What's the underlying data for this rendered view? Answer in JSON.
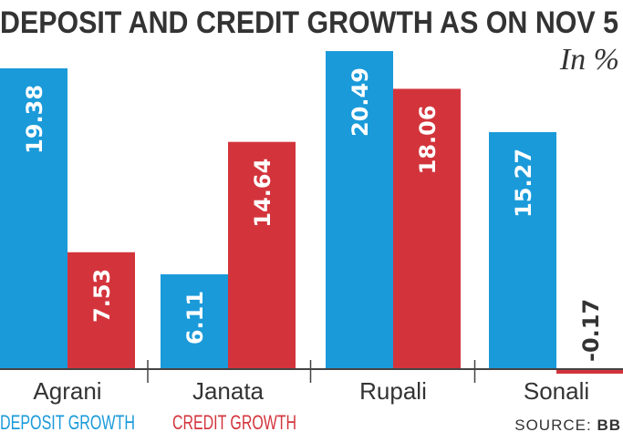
{
  "chart_data": {
    "type": "bar",
    "title": "DEPOSIT AND CREDIT GROWTH AS ON NOV 5",
    "unit_label": "In %",
    "categories": [
      "Agrani",
      "Janata",
      "Rupali",
      "Sonali"
    ],
    "series": [
      {
        "name": "DEPOSIT GROWTH",
        "color": "#1a9ad9",
        "values": [
          19.38,
          6.11,
          20.49,
          15.27
        ],
        "labels": [
          "19.38",
          "6.11",
          "20.49",
          "15.27"
        ]
      },
      {
        "name": "CREDIT GROWTH",
        "color": "#d3343c",
        "values": [
          7.53,
          14.64,
          18.06,
          -0.17
        ],
        "labels": [
          "7.53",
          "14.64",
          "18.06",
          "-0.17"
        ]
      }
    ],
    "ylim": [
      -0.5,
      21
    ],
    "grid": false,
    "legend": "bottom-left",
    "source_prefix": "SOURCE: ",
    "source_name": "BB"
  }
}
